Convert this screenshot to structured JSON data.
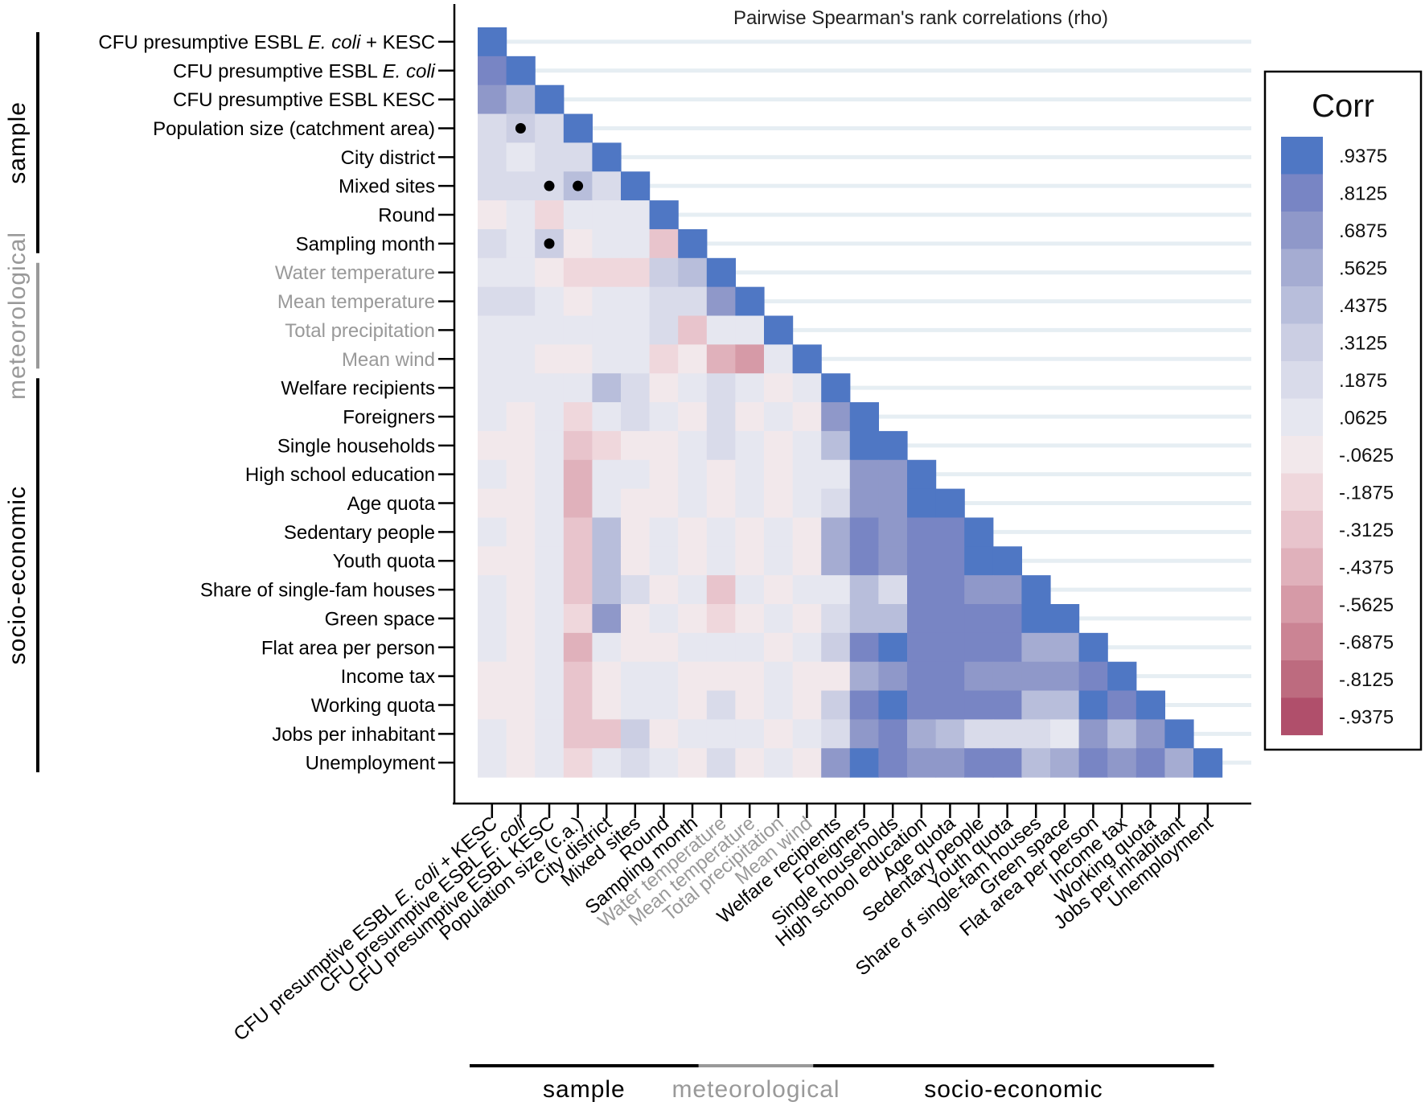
{
  "chart_data": {
    "type": "heatmap",
    "title": "Pairwise Spearman's rank correlations (rho)",
    "variables": [
      {
        "parts": [
          {
            "t": "CFU presumptive ESBL "
          },
          {
            "t": "E. coli",
            "i": true
          },
          {
            "t": " + KESC"
          }
        ],
        "group": "sample"
      },
      {
        "parts": [
          {
            "t": "CFU presumptive ESBL "
          },
          {
            "t": "E. coli",
            "i": true
          }
        ],
        "group": "sample"
      },
      {
        "parts": [
          {
            "t": "CFU presumptive ESBL KESC"
          }
        ],
        "group": "sample"
      },
      {
        "parts": [
          {
            "t": "Population size (catchment area)"
          }
        ],
        "xparts": [
          {
            "t": "Population size (c.a.)"
          }
        ],
        "group": "sample"
      },
      {
        "parts": [
          {
            "t": "City district"
          }
        ],
        "group": "sample"
      },
      {
        "parts": [
          {
            "t": "Mixed sites"
          }
        ],
        "group": "sample"
      },
      {
        "parts": [
          {
            "t": "Round"
          }
        ],
        "group": "sample"
      },
      {
        "parts": [
          {
            "t": "Sampling month"
          }
        ],
        "group": "sample"
      },
      {
        "parts": [
          {
            "t": "Water temperature"
          }
        ],
        "group": "meteorological"
      },
      {
        "parts": [
          {
            "t": "Mean temperature"
          }
        ],
        "group": "meteorological"
      },
      {
        "parts": [
          {
            "t": "Total precipitation"
          }
        ],
        "group": "meteorological"
      },
      {
        "parts": [
          {
            "t": "Mean wind"
          }
        ],
        "group": "meteorological"
      },
      {
        "parts": [
          {
            "t": "Welfare recipients"
          }
        ],
        "group": "socio-economic"
      },
      {
        "parts": [
          {
            "t": "Foreigners"
          }
        ],
        "group": "socio-economic"
      },
      {
        "parts": [
          {
            "t": "Single households"
          }
        ],
        "group": "socio-economic"
      },
      {
        "parts": [
          {
            "t": "High school education"
          }
        ],
        "group": "socio-economic"
      },
      {
        "parts": [
          {
            "t": "Age quota"
          }
        ],
        "group": "socio-economic"
      },
      {
        "parts": [
          {
            "t": "Sedentary people"
          }
        ],
        "group": "socio-economic"
      },
      {
        "parts": [
          {
            "t": "Youth quota"
          }
        ],
        "group": "socio-economic"
      },
      {
        "parts": [
          {
            "t": "Share of single-fam houses"
          }
        ],
        "group": "socio-economic"
      },
      {
        "parts": [
          {
            "t": "Green space"
          }
        ],
        "group": "socio-economic"
      },
      {
        "parts": [
          {
            "t": "Flat area per person"
          }
        ],
        "group": "socio-economic"
      },
      {
        "parts": [
          {
            "t": "Income tax"
          }
        ],
        "group": "socio-economic"
      },
      {
        "parts": [
          {
            "t": "Working quota"
          }
        ],
        "group": "socio-economic"
      },
      {
        "parts": [
          {
            "t": "Jobs per inhabitant"
          }
        ],
        "group": "socio-economic"
      },
      {
        "parts": [
          {
            "t": "Unemployment"
          }
        ],
        "group": "socio-economic"
      }
    ],
    "groups": [
      {
        "name": "sample",
        "count": 8,
        "color": "#000000"
      },
      {
        "name": "meteorological",
        "count": 4,
        "color": "#999999"
      },
      {
        "name": "socio-economic",
        "count": 14,
        "color": "#000000"
      }
    ],
    "matrix": [
      [
        1.0
      ],
      [
        0.8,
        1.0
      ],
      [
        0.7,
        0.4,
        1.0
      ],
      [
        0.25,
        0.35,
        0.15,
        1.0
      ],
      [
        0.15,
        0.05,
        0.15,
        0.15,
        1.0
      ],
      [
        0.15,
        0.15,
        0.25,
        0.4,
        0.15,
        1.0
      ],
      [
        -0.05,
        0.05,
        -0.2,
        0.05,
        0.05,
        0.05,
        1.0
      ],
      [
        0.2,
        0.05,
        0.35,
        -0.05,
        0.05,
        0.05,
        -0.35,
        1.0
      ],
      [
        0.05,
        0.05,
        -0.05,
        -0.15,
        -0.15,
        -0.15,
        0.3,
        0.4,
        1.0
      ],
      [
        0.2,
        0.2,
        0.05,
        -0.05,
        0.05,
        0.05,
        0.15,
        0.15,
        0.65,
        1.0
      ],
      [
        0.05,
        0.05,
        0.05,
        0.05,
        0.05,
        0.05,
        0.15,
        -0.35,
        0.05,
        0.05,
        1.0
      ],
      [
        0.05,
        0.05,
        -0.05,
        -0.05,
        0.05,
        0.05,
        -0.15,
        -0.05,
        -0.45,
        -0.55,
        0.05,
        1.0
      ],
      [
        0.05,
        0.05,
        0.05,
        0.05,
        0.5,
        0.2,
        -0.05,
        0.05,
        0.15,
        0.05,
        -0.05,
        0.05,
        1.0
      ],
      [
        0.05,
        -0.05,
        0.05,
        -0.2,
        0.05,
        0.2,
        0.05,
        -0.05,
        0.15,
        -0.05,
        0.05,
        -0.05,
        0.75,
        1.0
      ],
      [
        -0.05,
        -0.05,
        0.05,
        -0.3,
        -0.2,
        -0.05,
        -0.05,
        0.05,
        0.2,
        0.05,
        -0.05,
        0.05,
        0.4,
        1.0,
        1.0
      ],
      [
        0.05,
        -0.05,
        0.05,
        -0.4,
        0.05,
        0.05,
        -0.05,
        0.05,
        -0.05,
        0.05,
        -0.05,
        0.05,
        0.05,
        0.75,
        0.75,
        1.0
      ],
      [
        -0.05,
        -0.05,
        0.05,
        -0.4,
        0.05,
        -0.05,
        -0.05,
        0.05,
        -0.05,
        0.05,
        -0.05,
        0.05,
        0.2,
        0.75,
        0.75,
        1.0,
        1.0
      ],
      [
        0.05,
        -0.05,
        0.05,
        -0.3,
        0.45,
        -0.05,
        0.05,
        -0.05,
        0.05,
        -0.05,
        0.05,
        -0.05,
        0.6,
        0.8,
        0.7,
        0.85,
        0.85,
        1.0
      ],
      [
        -0.05,
        -0.05,
        0.05,
        -0.3,
        0.45,
        -0.05,
        0.05,
        -0.05,
        0.05,
        -0.05,
        0.05,
        -0.05,
        0.6,
        0.8,
        0.7,
        0.85,
        0.85,
        1.0,
        1.0
      ],
      [
        0.05,
        -0.05,
        0.05,
        -0.3,
        0.45,
        0.15,
        -0.05,
        0.05,
        -0.25,
        0.05,
        -0.05,
        0.05,
        0.05,
        0.4,
        0.25,
        0.85,
        0.85,
        0.7,
        0.7,
        1.0
      ],
      [
        0.05,
        -0.05,
        0.05,
        -0.2,
        0.65,
        -0.05,
        0.05,
        -0.05,
        -0.2,
        -0.05,
        0.05,
        -0.05,
        0.15,
        0.4,
        0.4,
        0.85,
        0.85,
        0.8,
        0.8,
        1.0,
        1.0
      ],
      [
        0.05,
        -0.05,
        0.05,
        -0.4,
        0.05,
        -0.05,
        -0.05,
        0.05,
        0.05,
        0.05,
        -0.05,
        0.05,
        0.35,
        0.8,
        1.0,
        0.85,
        0.85,
        0.8,
        0.8,
        0.6,
        0.6,
        1.0
      ],
      [
        -0.05,
        -0.05,
        0.05,
        -0.35,
        -0.05,
        0.05,
        0.05,
        -0.05,
        -0.05,
        -0.05,
        0.05,
        -0.05,
        -0.05,
        0.55,
        0.65,
        0.85,
        0.85,
        0.7,
        0.7,
        0.7,
        0.7,
        0.8,
        1.0
      ],
      [
        -0.05,
        -0.05,
        0.05,
        -0.3,
        -0.05,
        0.05,
        0.05,
        -0.05,
        0.15,
        -0.05,
        0.05,
        -0.05,
        0.35,
        0.8,
        1.0,
        0.85,
        0.85,
        0.8,
        0.8,
        0.45,
        0.5,
        1.0,
        0.8,
        1.0
      ],
      [
        0.05,
        -0.05,
        0.05,
        -0.3,
        -0.35,
        0.35,
        -0.05,
        0.05,
        0.05,
        0.05,
        -0.05,
        0.05,
        0.15,
        0.65,
        0.8,
        0.6,
        0.5,
        0.25,
        0.25,
        0.15,
        0.05,
        0.65,
        0.5,
        0.7,
        1.0
      ],
      [
        0.05,
        -0.05,
        0.05,
        -0.15,
        0.05,
        0.2,
        0.05,
        -0.05,
        0.2,
        -0.05,
        0.05,
        -0.05,
        0.75,
        1.0,
        0.8,
        0.75,
        0.75,
        0.8,
        0.8,
        0.45,
        0.55,
        0.8,
        0.65,
        0.8,
        0.55,
        1.0
      ]
    ],
    "markers": [
      [
        3,
        1
      ],
      [
        5,
        2
      ],
      [
        5,
        3
      ],
      [
        7,
        2
      ]
    ],
    "legend": {
      "title": "Corr",
      "position": "right",
      "entries": [
        {
          "label": ".9375",
          "color": "#4f77c4"
        },
        {
          "label": ".8125",
          "color": "#7885c4"
        },
        {
          "label": ".6875",
          "color": "#8f98c9"
        },
        {
          "label": ".5625",
          "color": "#a5acd2"
        },
        {
          "label": ".4375",
          "color": "#b8bedb"
        },
        {
          "label": ".3125",
          "color": "#cbcee3"
        },
        {
          "label": ".1875",
          "color": "#d9dbea"
        },
        {
          "label": ".0625",
          "color": "#e6e7f0"
        },
        {
          "label": "-.0625",
          "color": "#f2e8eb"
        },
        {
          "label": "-.1875",
          "color": "#efd7dc"
        },
        {
          "label": "-.3125",
          "color": "#e8c4cc"
        },
        {
          "label": "-.4375",
          "color": "#e0b1bb"
        },
        {
          "label": "-.5625",
          "color": "#d69aa7"
        },
        {
          "label": "-.6875",
          "color": "#cb8494"
        },
        {
          "label": "-.8125",
          "color": "#bd6b7f"
        },
        {
          "label": "-.9375",
          "color": "#b04f6b"
        }
      ]
    }
  }
}
